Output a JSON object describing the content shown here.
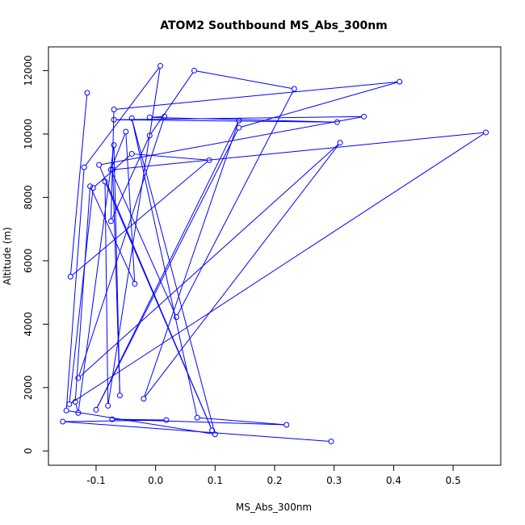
{
  "chart_data": {
    "type": "line",
    "title": "ATOM2 Southbound MS_Abs_300nm",
    "xlabel": "MS_Abs_300nm",
    "ylabel": "Altitude (m)",
    "xlim": [
      -0.18,
      0.58
    ],
    "ylim": [
      -450,
      12750
    ],
    "x_ticks": [
      -0.1,
      0.0,
      0.1,
      0.2,
      0.3,
      0.4,
      0.5
    ],
    "x_tick_labels": [
      "-0.1",
      "0.0",
      "0.1",
      "0.2",
      "0.3",
      "0.4",
      "0.5"
    ],
    "y_ticks": [
      0,
      2000,
      4000,
      6000,
      8000,
      10000,
      12000
    ],
    "y_tick_labels": [
      "0",
      "2000",
      "4000",
      "6000",
      "8000",
      "10000",
      "12000"
    ],
    "grid": false,
    "series_color": "#0000ff",
    "marker": "open-circle",
    "points": [
      {
        "x": 0.295,
        "y": 300
      },
      {
        "x": -0.156,
        "y": 925
      },
      {
        "x": 0.018,
        "y": 975
      },
      {
        "x": -0.073,
        "y": 1000
      },
      {
        "x": 0.22,
        "y": 825
      },
      {
        "x": 0.07,
        "y": 1050
      },
      {
        "x": -0.04,
        "y": 10500
      },
      {
        "x": 0.1,
        "y": 525
      },
      {
        "x": -0.15,
        "y": 1275
      },
      {
        "x": -0.12,
        "y": 8950
      },
      {
        "x": 0.008,
        "y": 12150
      },
      {
        "x": -0.08,
        "y": 1425
      },
      {
        "x": -0.085,
        "y": 8500
      },
      {
        "x": 0.095,
        "y": 650
      },
      {
        "x": -0.095,
        "y": 9025
      },
      {
        "x": 0.35,
        "y": 10550
      },
      {
        "x": -0.07,
        "y": 10450
      },
      {
        "x": 0.305,
        "y": 10375
      },
      {
        "x": -0.01,
        "y": 10525
      },
      {
        "x": 0.015,
        "y": 10550
      },
      {
        "x": -0.13,
        "y": 2300
      },
      {
        "x": 0.31,
        "y": 9725
      },
      {
        "x": -0.02,
        "y": 1650
      },
      {
        "x": 0.14,
        "y": 10425
      },
      {
        "x": -0.1,
        "y": 1300
      },
      {
        "x": 0.14,
        "y": 10200
      },
      {
        "x": 0.41,
        "y": 11650
      },
      {
        "x": -0.07,
        "y": 10775
      },
      {
        "x": -0.075,
        "y": 7250
      },
      {
        "x": -0.01,
        "y": 9950
      },
      {
        "x": 0.065,
        "y": 12000
      },
      {
        "x": 0.233,
        "y": 11425
      },
      {
        "x": 0.035,
        "y": 4225
      },
      {
        "x": -0.075,
        "y": 8875
      },
      {
        "x": -0.05,
        "y": 10075
      },
      {
        "x": -0.035,
        "y": 5275
      },
      {
        "x": -0.11,
        "y": 8350
      },
      {
        "x": -0.135,
        "y": 1550
      },
      {
        "x": -0.13,
        "y": 1200
      },
      {
        "x": -0.07,
        "y": 9650
      },
      {
        "x": -0.06,
        "y": 1750
      },
      {
        "x": -0.072,
        "y": 8875
      },
      {
        "x": 0.555,
        "y": 10050
      },
      {
        "x": -0.145,
        "y": 1475
      },
      {
        "x": -0.105,
        "y": 8300
      },
      {
        "x": -0.04,
        "y": 9375
      },
      {
        "x": 0.09,
        "y": 9175
      },
      {
        "x": -0.143,
        "y": 5500
      },
      {
        "x": -0.115,
        "y": 11300
      }
    ]
  }
}
